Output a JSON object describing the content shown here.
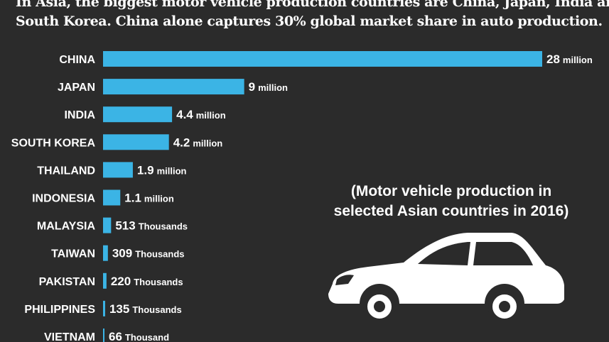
{
  "intro": {
    "line1": "In Asia, the biggest motor vehicle production countries are China, Japan, India and",
    "line2": "South Korea. China alone captures 30% global market share in auto production."
  },
  "subtitle": {
    "line1": "(Motor vehicle production in",
    "line2": "selected Asian countries in 2016)"
  },
  "icon": "car-icon",
  "chart_data": {
    "type": "bar",
    "orientation": "horizontal",
    "bar_color": "#3bb4e5",
    "background": "#2b2b2b",
    "grid": false,
    "categories": [
      "CHINA",
      "JAPAN",
      "INDIA",
      "SOUTH KOREA",
      "THAILAND",
      "INDONESIA",
      "MALAYSIA",
      "TAIWAN",
      "PAKISTAN",
      "PHILIPPINES",
      "VIETNAM"
    ],
    "values": [
      28000000,
      9000000,
      4400000,
      4200000,
      1900000,
      1100000,
      513000,
      309000,
      220000,
      135000,
      66000
    ],
    "labels": [
      {
        "num": "28",
        "unit": "million"
      },
      {
        "num": "9",
        "unit": "million"
      },
      {
        "num": "4.4",
        "unit": "million"
      },
      {
        "num": "4.2",
        "unit": "million"
      },
      {
        "num": "1.9",
        "unit": "million"
      },
      {
        "num": "1.1",
        "unit": "million"
      },
      {
        "num": "513",
        "unit": "Thousands"
      },
      {
        "num": "309",
        "unit": "Thousands"
      },
      {
        "num": "220",
        "unit": "Thousands"
      },
      {
        "num": "135",
        "unit": "Thousands"
      },
      {
        "num": "66",
        "unit": "Thousand"
      }
    ]
  }
}
